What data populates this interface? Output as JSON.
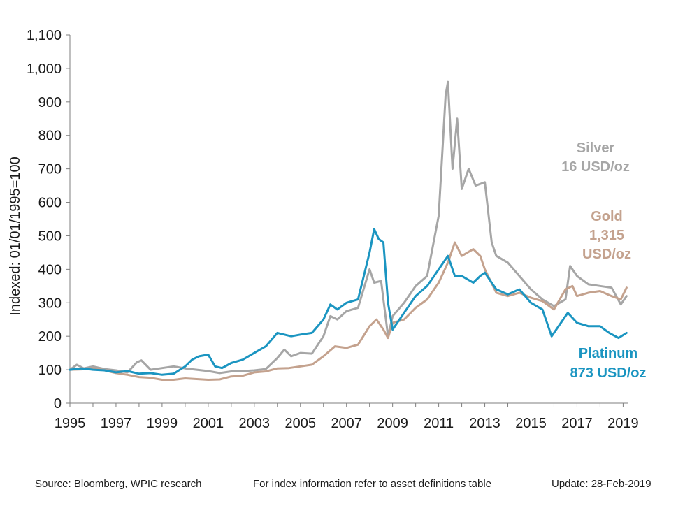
{
  "chart_data": {
    "type": "line",
    "ylabel": "Indexed: 01/01/1995=100",
    "ylim": [
      0,
      1100
    ],
    "yticks": [
      0,
      100,
      200,
      300,
      400,
      500,
      600,
      700,
      800,
      900,
      1000,
      1100
    ],
    "ytick_labels": [
      "0",
      "100",
      "200",
      "300",
      "400",
      "500",
      "600",
      "700",
      "800",
      "900",
      "1,000",
      "1,100"
    ],
    "xlim": [
      1995,
      2019.2
    ],
    "xticks": [
      1995,
      1997,
      1999,
      2001,
      2003,
      2005,
      2007,
      2009,
      2011,
      2013,
      2015,
      2017,
      2019
    ],
    "xtick_labels": [
      "1995",
      "1997",
      "1999",
      "2001",
      "2003",
      "2005",
      "2007",
      "2009",
      "2011",
      "2013",
      "2015",
      "2017",
      "2019"
    ],
    "grid": false,
    "series": [
      {
        "key": "silver",
        "label_lines": [
          "Silver",
          "16 USD/oz"
        ],
        "color": "#a6a6a6",
        "x": [
          1995,
          1995.3,
          1995.6,
          1996,
          1996.5,
          1997,
          1997.5,
          1997.9,
          1998.1,
          1998.5,
          1999,
          1999.5,
          2000,
          2000.5,
          2001,
          2001.5,
          2002,
          2002.5,
          2003,
          2003.5,
          2004,
          2004.3,
          2004.6,
          2005,
          2005.5,
          2006,
          2006.3,
          2006.6,
          2007,
          2007.5,
          2008,
          2008.2,
          2008.5,
          2008.8,
          2009,
          2009.5,
          2010,
          2010.5,
          2011,
          2011.3,
          2011.4,
          2011.6,
          2011.8,
          2012,
          2012.3,
          2012.6,
          2013,
          2013.3,
          2013.5,
          2014,
          2014.5,
          2015,
          2015.5,
          2016,
          2016.5,
          2016.7,
          2017,
          2017.5,
          2018,
          2018.5,
          2018.9,
          2019.15
        ],
        "values": [
          100,
          115,
          104,
          110,
          102,
          98,
          92,
          122,
          128,
          100,
          105,
          110,
          104,
          100,
          96,
          90,
          95,
          96,
          98,
          102,
          135,
          160,
          140,
          150,
          148,
          200,
          260,
          250,
          275,
          285,
          400,
          360,
          365,
          200,
          260,
          300,
          350,
          380,
          560,
          920,
          960,
          700,
          850,
          640,
          700,
          650,
          660,
          480,
          440,
          420,
          380,
          340,
          310,
          290,
          310,
          410,
          380,
          355,
          350,
          345,
          295,
          320
        ]
      },
      {
        "key": "gold",
        "label_lines": [
          "Gold",
          "1,315",
          "USD/oz"
        ],
        "color": "#c4a28e",
        "x": [
          1995,
          1995.5,
          1996,
          1996.5,
          1997,
          1997.5,
          1998,
          1998.5,
          1999,
          1999.5,
          2000,
          2000.5,
          2001,
          2001.5,
          2002,
          2002.5,
          2003,
          2003.5,
          2004,
          2004.5,
          2005,
          2005.5,
          2006,
          2006.5,
          2007,
          2007.5,
          2008,
          2008.3,
          2008.6,
          2008.8,
          2009,
          2009.5,
          2010,
          2010.5,
          2011,
          2011.4,
          2011.7,
          2012,
          2012.5,
          2012.8,
          2013,
          2013.5,
          2014,
          2014.5,
          2015,
          2015.5,
          2016,
          2016.5,
          2016.8,
          2017,
          2017.5,
          2018,
          2018.5,
          2018.9,
          2019.15
        ],
        "values": [
          100,
          101,
          105,
          98,
          90,
          85,
          78,
          76,
          70,
          70,
          74,
          72,
          70,
          71,
          80,
          82,
          92,
          95,
          104,
          105,
          110,
          115,
          140,
          170,
          165,
          175,
          230,
          250,
          220,
          195,
          240,
          250,
          285,
          310,
          360,
          420,
          480,
          440,
          460,
          440,
          400,
          330,
          320,
          330,
          315,
          305,
          280,
          340,
          350,
          320,
          330,
          335,
          320,
          310,
          345
        ]
      },
      {
        "key": "platinum",
        "label_lines": [
          "Platinum",
          "873 USD/oz"
        ],
        "color": "#1b95c1",
        "x": [
          1995,
          1995.5,
          1996,
          1996.5,
          1997,
          1997.5,
          1998,
          1998.5,
          1999,
          1999.5,
          2000,
          2000.3,
          2000.6,
          2001,
          2001.3,
          2001.6,
          2002,
          2002.5,
          2003,
          2003.5,
          2004,
          2004.3,
          2004.6,
          2005,
          2005.5,
          2006,
          2006.3,
          2006.6,
          2007,
          2007.5,
          2008,
          2008.2,
          2008.4,
          2008.6,
          2008.8,
          2009,
          2009.5,
          2010,
          2010.5,
          2011,
          2011.4,
          2011.7,
          2012,
          2012.5,
          2012.8,
          2013,
          2013.5,
          2014,
          2014.5,
          2015,
          2015.5,
          2015.9,
          2016.3,
          2016.6,
          2017,
          2017.5,
          2018,
          2018.4,
          2018.8,
          2019.15
        ],
        "values": [
          100,
          104,
          100,
          98,
          92,
          96,
          88,
          90,
          85,
          88,
          110,
          130,
          140,
          145,
          110,
          105,
          120,
          130,
          150,
          170,
          210,
          205,
          200,
          205,
          210,
          250,
          295,
          280,
          300,
          310,
          450,
          520,
          490,
          480,
          300,
          220,
          270,
          320,
          350,
          400,
          440,
          380,
          380,
          360,
          380,
          390,
          340,
          325,
          340,
          300,
          280,
          200,
          240,
          270,
          240,
          230,
          230,
          210,
          195,
          210
        ]
      }
    ]
  },
  "footer": {
    "source": "Source: Bloomberg, WPIC research",
    "note": "For index information refer to asset definitions table",
    "update": "Update: 28-Feb-2019"
  }
}
